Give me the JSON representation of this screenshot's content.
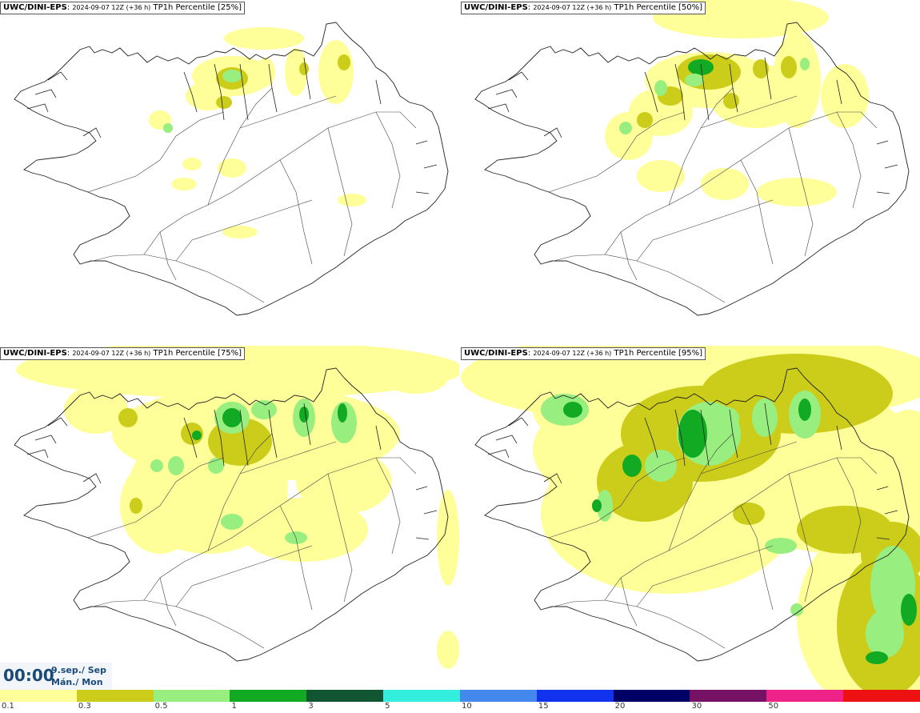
{
  "panels": [
    {
      "model": "UWC/DINI-EPS",
      "run": "2024-09-07 12Z (+36 h)",
      "param": "TP1h Percentile [25%]"
    },
    {
      "model": "UWC/DINI-EPS",
      "run": "2024-09-07 12Z (+36 h)",
      "param": "TP1h Percentile [50%]"
    },
    {
      "model": "UWC/DINI-EPS",
      "run": "2024-09-07 12Z (+36 h)",
      "param": "TP1h Percentile [75%]"
    },
    {
      "model": "UWC/DINI-EPS",
      "run": "2024-09-07 12Z (+36 h)",
      "param": "TP1h Percentile [95%]"
    }
  ],
  "timestamp": {
    "time": "00:00",
    "date": "9.sep./ Sep",
    "day": "Mán./ Mon"
  },
  "legend": {
    "colors": [
      "#ffff99",
      "#cccc1a",
      "#99ee80",
      "#11aa22",
      "#115533",
      "#33eedd",
      "#4488ee",
      "#1133ee",
      "#000066",
      "#771166",
      "#ee2288",
      "#ee1111"
    ],
    "labels": [
      "0.1",
      "0.3",
      "0.5",
      "1",
      "3",
      "5",
      "10",
      "15",
      "20",
      "30",
      "50"
    ]
  },
  "colors": {
    "p1": "#ffff99",
    "p2": "#cccc1a",
    "p3": "#99ee80",
    "p4": "#11aa22",
    "p5": "#115533",
    "border": "#222222"
  }
}
